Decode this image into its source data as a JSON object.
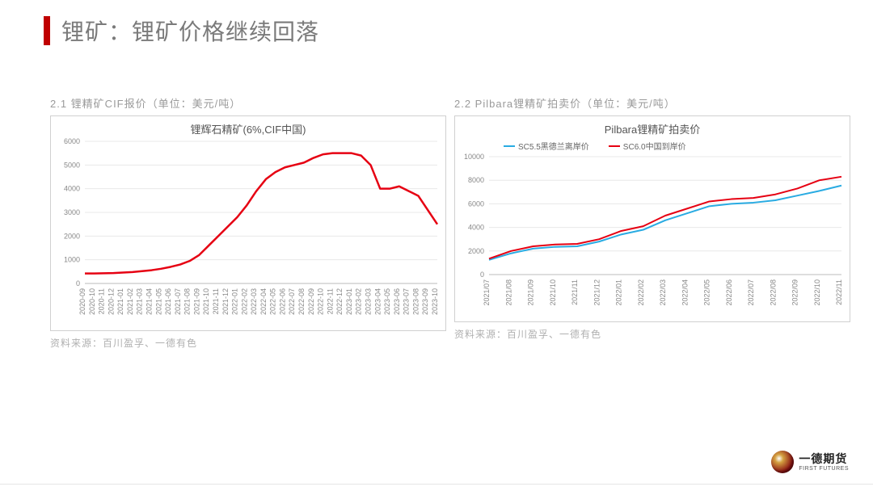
{
  "header": {
    "title": "锂矿：锂矿价格继续回落"
  },
  "colors": {
    "accent": "#c00000",
    "text_muted": "#9a9a9a",
    "grid": "#e8e8e8",
    "axis": "#bbbbbb",
    "background": "#ffffff"
  },
  "chart1": {
    "caption": "2.1 锂精矿CIF报价（单位：美元/吨）",
    "title": "锂辉石精矿(6%,CIF中国)",
    "source": "资料来源：百川盈孚、一德有色",
    "type": "line",
    "line_color": "#e60012",
    "line_width": 2.5,
    "ylim": [
      0,
      6000
    ],
    "ytick_step": 1000,
    "background_color": "#ffffff",
    "grid_color": "#e8e8e8",
    "x_labels": [
      "2020-09",
      "2020-10",
      "2020-11",
      "2020-12",
      "2021-01",
      "2021-02",
      "2021-03",
      "2021-04",
      "2021-05",
      "2021-06",
      "2021-07",
      "2021-08",
      "2021-09",
      "2021-10",
      "2021-11",
      "2021-12",
      "2022-01",
      "2022-02",
      "2022-03",
      "2022-04",
      "2022-05",
      "2022-06",
      "2022-07",
      "2022-08",
      "2022-09",
      "2022-10",
      "2022-11",
      "2022-12",
      "2023-01",
      "2023-02",
      "2023-03",
      "2023-04",
      "2023-05",
      "2023-06",
      "2023-07",
      "2023-08",
      "2023-09",
      "2023-10"
    ],
    "values": [
      420,
      420,
      430,
      440,
      460,
      480,
      520,
      560,
      620,
      700,
      800,
      950,
      1200,
      1600,
      2000,
      2400,
      2800,
      3300,
      3900,
      4400,
      4700,
      4900,
      5000,
      5100,
      5300,
      5450,
      5500,
      5500,
      5500,
      5400,
      5000,
      4000,
      4000,
      4100,
      3900,
      3700,
      3100,
      2500
    ]
  },
  "chart2": {
    "caption": "2.2 Pilbara锂精矿拍卖价（单位：美元/吨）",
    "title": "Pilbara锂精矿拍卖价",
    "source": "资料来源：百川盈孚、一德有色",
    "type": "line",
    "background_color": "#ffffff",
    "grid_color": "#e8e8e8",
    "ylim": [
      0,
      10000
    ],
    "ytick_step": 2000,
    "line_width": 2,
    "x_labels": [
      "2021/07",
      "2021/08",
      "2021/09",
      "2021/10",
      "2021/11",
      "2021/12",
      "2022/01",
      "2022/02",
      "2022/03",
      "2022/04",
      "2022/05",
      "2022/06",
      "2022/07",
      "2022/08",
      "2022/09",
      "2022/10",
      "2022/11"
    ],
    "series": [
      {
        "name": "SC5.5黑德兰离岸价",
        "color": "#29abe2",
        "values": [
          1250,
          1800,
          2200,
          2350,
          2400,
          2800,
          3400,
          3800,
          4600,
          5200,
          5800,
          6000,
          6100,
          6300,
          6700,
          7100,
          7550
        ]
      },
      {
        "name": "SC6.0中国到岸价",
        "color": "#e60012",
        "values": [
          1350,
          2000,
          2400,
          2550,
          2600,
          3000,
          3700,
          4100,
          5000,
          5600,
          6200,
          6400,
          6500,
          6800,
          7300,
          8000,
          8300
        ]
      }
    ],
    "legend_position": "top-left"
  },
  "logo": {
    "cn": "一德期货",
    "en": "FIRST FUTURES"
  }
}
